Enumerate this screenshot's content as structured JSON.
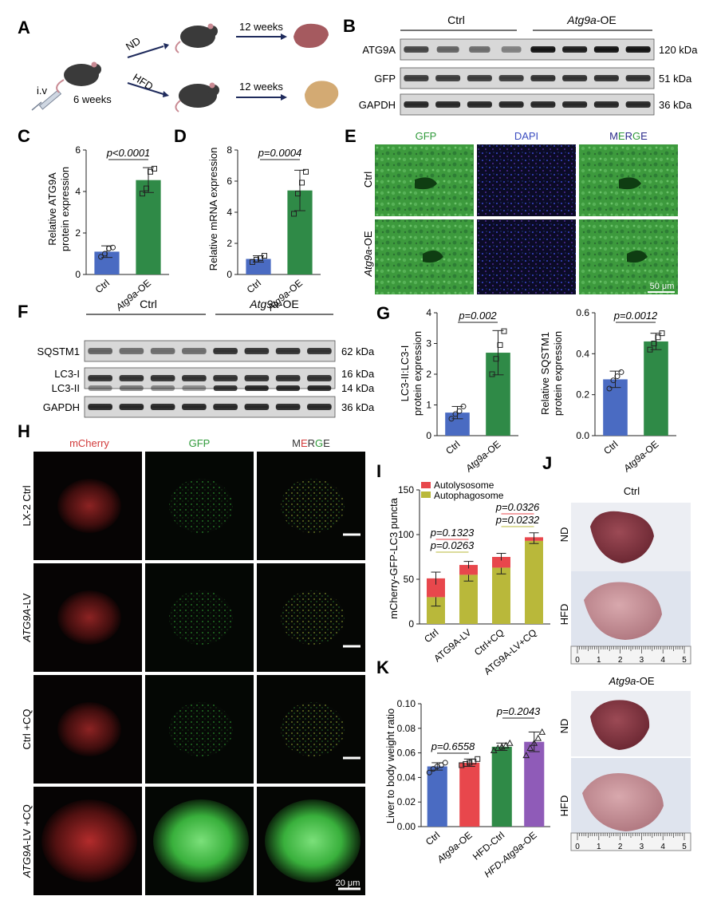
{
  "panels": {
    "A": {
      "letter": "A",
      "iv": "i.v",
      "age": "6 weeks",
      "diet_top": "ND",
      "diet_bottom": "HFD",
      "duration_top": "12 weeks",
      "duration_bottom": "12 weeks"
    },
    "B": {
      "letter": "B",
      "group_ctrl": "Ctrl",
      "group_oe": "Atg9a",
      "group_oe_suffix": "-OE",
      "rows": [
        {
          "label": "ATG9A",
          "kda": "120 kDa"
        },
        {
          "label": "GFP",
          "kda": "51 kDa"
        },
        {
          "label": "GAPDH",
          "kda": "36 kDa"
        }
      ]
    },
    "C": {
      "letter": "C",
      "ylabel1": "Relative ATG9A",
      "ylabel2": "protein expression",
      "yticks": [
        "0",
        "2",
        "4",
        "6"
      ],
      "pvalue": "p<0.0001",
      "xcat1": "Ctrl",
      "xcat2": "Atg9a",
      "xcat2_suffix": "-OE",
      "colors": {
        "ctrl": "#4a6bc2",
        "oe": "#2f8a47"
      }
    },
    "D": {
      "letter": "D",
      "ylabel": "Relative mRNA expression",
      "yticks": [
        "0",
        "2",
        "4",
        "6",
        "8"
      ],
      "pvalue": "p=0.0004",
      "xcat1": "Ctrl",
      "xcat2": "Atg9a",
      "xcat2_suffix": "-OE"
    },
    "E": {
      "letter": "E",
      "col_gfp": "GFP",
      "col_dapi": "DAPI",
      "merge_m": "M",
      "merge_e": "E",
      "merge_r": "R",
      "merge_g": "G",
      "merge_e2": "E",
      "row1": "Ctrl",
      "row2": "Atg9a",
      "row2_suffix": "-OE",
      "scale": "50 μm"
    },
    "F": {
      "letter": "F",
      "group_ctrl": "Ctrl",
      "group_oe": "Atg9a",
      "group_oe_suffix": "-OE",
      "rows": [
        {
          "label": "SQSTM1",
          "kda": "62 kDa"
        },
        {
          "label": "LC3-I",
          "kda": "16 kDa"
        },
        {
          "label": "LC3-II",
          "kda": "14 kDa"
        },
        {
          "label": "GAPDH",
          "kda": "36 kDa"
        }
      ]
    },
    "G": {
      "letter": "G",
      "left_ylabel1": "LC3-II:LC3-I",
      "left_ylabel2": "protein expression",
      "left_yticks": [
        "0",
        "1",
        "2",
        "3",
        "4"
      ],
      "left_p": "p=0.002",
      "right_ylabel1": "Relative SQSTM1",
      "right_ylabel2": "protein expression",
      "right_yticks": [
        "0.0",
        "0.2",
        "0.4",
        "0.6"
      ],
      "right_p": "p=0.0012",
      "xcat1": "Ctrl",
      "xcat2": "Atg9a",
      "xcat2_suffix": "-OE"
    },
    "H": {
      "letter": "H",
      "col_mcherry": "mCherry",
      "col_gfp": "GFP",
      "merge_m": "M",
      "merge_e": "E",
      "merge_r": "R",
      "merge_g": "G",
      "merge_e2": "E",
      "rows": [
        "LX-2 Ctrl",
        "ATG9A-LV",
        "Ctrl +CQ",
        "ATG9A-LV +CQ"
      ],
      "scale": "20 μm"
    },
    "I": {
      "letter": "I",
      "ylabel": "mCherry-GFP-LC3 puncta",
      "yticks": [
        "0",
        "50",
        "100",
        "150"
      ],
      "legend_auto": "Autolysosome",
      "legend_autoph": "Autophagosome",
      "p1": "p=0.1323",
      "p2": "p=0.0263",
      "p3": "p=0.0326",
      "p4": "p=0.0232",
      "cats": [
        "Ctrl",
        "ATG9A-LV",
        "Ctrl+CQ",
        "ATG9A-LV+CQ"
      ],
      "colors": {
        "autolysosome": "#e8474c",
        "autophagosome": "#b9b83a"
      }
    },
    "J": {
      "letter": "J",
      "title_ctrl": "Ctrl",
      "title_oe": "Atg9a",
      "title_oe_suffix": "-OE",
      "nd": "ND",
      "hfd": "HFD",
      "ruler": [
        "0",
        "1",
        "2",
        "3",
        "4",
        "5"
      ]
    },
    "K": {
      "letter": "K",
      "ylabel": "Liver to body weight ratio",
      "yticks": [
        "0.00",
        "0.02",
        "0.04",
        "0.06",
        "0.08",
        "0.10"
      ],
      "p1": "p=0.6558",
      "p2": "p=0.2043",
      "cats": [
        "Ctrl",
        "Atg9a-OE",
        "HFD-Ctrl",
        "HFD-Atg9a-OE"
      ],
      "colors": [
        "#4a6bc2",
        "#e8474c",
        "#2f8a47",
        "#8f5bb8"
      ]
    }
  },
  "chart_data": [
    {
      "panel": "C",
      "type": "bar",
      "categories": [
        "Ctrl",
        "Atg9a-OE"
      ],
      "values": [
        1.1,
        4.55
      ],
      "errors": [
        0.28,
        0.6
      ],
      "points": [
        [
          0.85,
          1.0,
          1.25,
          1.3
        ],
        [
          3.9,
          4.15,
          4.95,
          5.1
        ]
      ],
      "ylim": [
        0,
        6
      ]
    },
    {
      "panel": "D",
      "type": "bar",
      "categories": [
        "Ctrl",
        "Atg9a-OE"
      ],
      "values": [
        1.0,
        5.4
      ],
      "errors": [
        0.2,
        1.3
      ],
      "points": [
        [
          0.8,
          0.95,
          1.05,
          1.2
        ],
        [
          3.9,
          5.2,
          5.9,
          6.6
        ]
      ],
      "ylim": [
        0,
        8
      ]
    },
    {
      "panel": "G-left",
      "type": "bar",
      "categories": [
        "Ctrl",
        "Atg9a-OE"
      ],
      "values": [
        0.75,
        2.7
      ],
      "errors": [
        0.2,
        0.72
      ],
      "points": [
        [
          0.55,
          0.7,
          0.8,
          0.95
        ],
        [
          2.0,
          2.5,
          2.95,
          3.4
        ]
      ],
      "ylim": [
        0,
        4
      ]
    },
    {
      "panel": "G-right",
      "type": "bar",
      "categories": [
        "Ctrl",
        "Atg9a-OE"
      ],
      "values": [
        0.275,
        0.46
      ],
      "errors": [
        0.04,
        0.04
      ],
      "points": [
        [
          0.23,
          0.27,
          0.29,
          0.31
        ],
        [
          0.42,
          0.45,
          0.48,
          0.5
        ]
      ],
      "ylim": [
        0,
        0.6
      ]
    },
    {
      "panel": "I",
      "type": "bar",
      "stacked": true,
      "categories": [
        "Ctrl",
        "ATG9A-LV",
        "Ctrl+CQ",
        "ATG9A-LV+CQ"
      ],
      "series": [
        {
          "name": "Autophagosome",
          "values": [
            30,
            55,
            63,
            93
          ],
          "errors": [
            10,
            7,
            7,
            3
          ]
        },
        {
          "name": "Autolysosome",
          "values": [
            21,
            11,
            12,
            4
          ],
          "errors": [
            7,
            4,
            4,
            5
          ]
        }
      ],
      "ylim": [
        0,
        150
      ]
    },
    {
      "panel": "K",
      "type": "bar",
      "categories": [
        "Ctrl",
        "Atg9a-OE",
        "HFD-Ctrl",
        "HFD-Atg9a-OE"
      ],
      "values": [
        0.049,
        0.052,
        0.065,
        0.069
      ],
      "errors": [
        0.003,
        0.003,
        0.003,
        0.008
      ],
      "points": [
        [
          0.044,
          0.047,
          0.049,
          0.05,
          0.052
        ],
        [
          0.05,
          0.051,
          0.052,
          0.053,
          0.055
        ],
        [
          0.062,
          0.064,
          0.065,
          0.066,
          0.068
        ],
        [
          0.058,
          0.064,
          0.068,
          0.072,
          0.077
        ]
      ],
      "ylim": [
        0,
        0.1
      ]
    }
  ]
}
